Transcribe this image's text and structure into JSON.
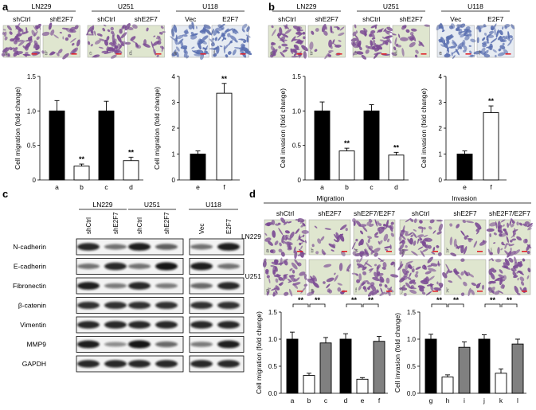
{
  "panels": {
    "a": {
      "letter": "a",
      "cell_lines": [
        "LN229",
        "U251",
        "U118"
      ],
      "image_labels": [
        "shCtrl",
        "shE2F7",
        "shCtrl",
        "shE2F7",
        "Vec",
        "E2F7"
      ],
      "image_letters": [
        "a",
        "b",
        "c",
        "d",
        "e",
        "f"
      ]
    },
    "b": {
      "letter": "b",
      "cell_lines": [
        "LN229",
        "U251",
        "U118"
      ],
      "image_labels": [
        "shCtrl",
        "shE2F7",
        "shCtrl",
        "shE2F7",
        "Vec",
        "E2F7"
      ],
      "image_letters": [
        "a",
        "b",
        "c",
        "d",
        "e",
        "f"
      ]
    },
    "c": {
      "letter": "c",
      "cell_lines": [
        "LN229",
        "U251",
        "U118"
      ],
      "lane_labels": [
        "shCtrl",
        "shE2F7",
        "shCtrl",
        "shE2F7",
        "Vec",
        "E2F7"
      ],
      "proteins": [
        "N-cadherin",
        "E-cadherin",
        "Fibronectin",
        "β-catenin",
        "Vimentin",
        "MMP9",
        "GAPDH"
      ],
      "band_intensity": [
        [
          0.85,
          0.45,
          0.9,
          0.55,
          0.45,
          0.9
        ],
        [
          0.45,
          0.85,
          0.45,
          0.95,
          0.9,
          0.45
        ],
        [
          0.9,
          0.4,
          0.85,
          0.4,
          0.5,
          0.85
        ],
        [
          0.8,
          0.8,
          0.8,
          0.8,
          0.8,
          0.8
        ],
        [
          0.85,
          0.85,
          0.85,
          0.85,
          0.85,
          0.85
        ],
        [
          0.9,
          0.3,
          0.95,
          0.5,
          0.4,
          0.9
        ],
        [
          0.85,
          0.85,
          0.85,
          0.85,
          0.85,
          0.85
        ]
      ]
    },
    "d": {
      "letter": "d",
      "group_labels": [
        "Migration",
        "Invasion"
      ],
      "column_labels": [
        "shCtrl",
        "shE2F7",
        "shE2F7/E2F7",
        "shCtrl",
        "shE2F7",
        "shE2F7/E2F7"
      ],
      "row_labels": [
        "LN229",
        "U251"
      ],
      "image_letters": [
        "a",
        "b",
        "c",
        "g",
        "h",
        "i",
        "d",
        "e",
        "f",
        "j",
        "k",
        "l"
      ]
    }
  },
  "chart_data": [
    {
      "type": "bar",
      "panel": "a",
      "categories": [
        "a",
        "b",
        "c",
        "d"
      ],
      "values": [
        1.0,
        0.2,
        1.0,
        0.28
      ],
      "errors": [
        0.15,
        0.03,
        0.14,
        0.05
      ],
      "fills": [
        "#000000",
        "#ffffff",
        "#000000",
        "#ffffff"
      ],
      "significance": [
        "",
        "**",
        "",
        "**"
      ],
      "ylabel": "Cell migration (fold change)",
      "ylim": [
        0,
        1.5
      ],
      "yticks": [
        0,
        0.5,
        1.0,
        1.5
      ],
      "ytick_labels": [
        "0",
        "0.5",
        "1.0",
        "1.5"
      ]
    },
    {
      "type": "bar",
      "panel": "a",
      "categories": [
        "e",
        "f"
      ],
      "values": [
        1.0,
        3.35
      ],
      "errors": [
        0.12,
        0.38
      ],
      "fills": [
        "#000000",
        "#ffffff"
      ],
      "significance": [
        "",
        "**"
      ],
      "ylabel": "Cell migration (fold change)",
      "ylim": [
        0,
        4
      ],
      "yticks": [
        0,
        1,
        2,
        3,
        4
      ],
      "ytick_labels": [
        "0",
        "1",
        "2",
        "3",
        "4"
      ]
    },
    {
      "type": "bar",
      "panel": "b",
      "categories": [
        "a",
        "b",
        "c",
        "d"
      ],
      "values": [
        1.0,
        0.42,
        1.0,
        0.36
      ],
      "errors": [
        0.13,
        0.04,
        0.09,
        0.04
      ],
      "fills": [
        "#000000",
        "#ffffff",
        "#000000",
        "#ffffff"
      ],
      "significance": [
        "",
        "**",
        "",
        "**"
      ],
      "ylabel": "Cell invasion (fold change)",
      "ylim": [
        0,
        1.5
      ],
      "yticks": [
        0,
        0.5,
        1.0,
        1.5
      ],
      "ytick_labels": [
        "0",
        "0.5",
        "1.0",
        "1.5"
      ]
    },
    {
      "type": "bar",
      "panel": "b",
      "categories": [
        "e",
        "f"
      ],
      "values": [
        1.0,
        2.6
      ],
      "errors": [
        0.12,
        0.26
      ],
      "fills": [
        "#000000",
        "#ffffff"
      ],
      "significance": [
        "",
        "**"
      ],
      "ylabel": "Cell invasion (fold change)",
      "ylim": [
        0,
        4
      ],
      "yticks": [
        0,
        1,
        2,
        3,
        4
      ],
      "ytick_labels": [
        "0",
        "1",
        "2",
        "3",
        "4"
      ]
    },
    {
      "type": "bar",
      "panel": "d",
      "categories": [
        "a",
        "b",
        "c",
        "d",
        "e",
        "f"
      ],
      "values": [
        1.0,
        0.33,
        0.93,
        1.0,
        0.26,
        0.96
      ],
      "errors": [
        0.13,
        0.04,
        0.1,
        0.1,
        0.03,
        0.09
      ],
      "fills": [
        "#000000",
        "#ffffff",
        "#808080",
        "#000000",
        "#ffffff",
        "#808080"
      ],
      "brackets": [
        [
          "a",
          "b",
          "**"
        ],
        [
          "b",
          "c",
          "**"
        ],
        [
          "d",
          "e",
          "**"
        ],
        [
          "e",
          "f",
          "**"
        ]
      ],
      "ylabel": "Cell migration (fold change)",
      "ylim": [
        0,
        1.5
      ],
      "yticks": [
        0,
        0.5,
        1.0,
        1.5
      ],
      "ytick_labels": [
        "0.0",
        "0.5",
        "1.0",
        "1.5"
      ]
    },
    {
      "type": "bar",
      "panel": "d",
      "categories": [
        "g",
        "h",
        "i",
        "j",
        "k",
        "l"
      ],
      "values": [
        1.0,
        0.3,
        0.85,
        1.0,
        0.37,
        0.91
      ],
      "errors": [
        0.09,
        0.04,
        0.1,
        0.08,
        0.08,
        0.09
      ],
      "fills": [
        "#000000",
        "#ffffff",
        "#808080",
        "#000000",
        "#ffffff",
        "#808080"
      ],
      "brackets": [
        [
          "g",
          "h",
          "**"
        ],
        [
          "h",
          "i",
          "**"
        ],
        [
          "j",
          "k",
          "**"
        ],
        [
          "k",
          "l",
          "**"
        ]
      ],
      "ylabel": "Cell invasion (fold change)",
      "ylim": [
        0,
        1.5
      ],
      "yticks": [
        0,
        0.5,
        1.0,
        1.5
      ],
      "ytick_labels": [
        "0.0",
        "0.5",
        "1.0",
        "1.5"
      ]
    }
  ],
  "colors": {
    "stain_purple": "#7b4b94",
    "stain_blue": "#5a6fb0",
    "background_green": "#dfe6cf",
    "scale_bar": "#e0222a",
    "blot_background": "#f3f3f3",
    "band_dark": "#111111"
  }
}
